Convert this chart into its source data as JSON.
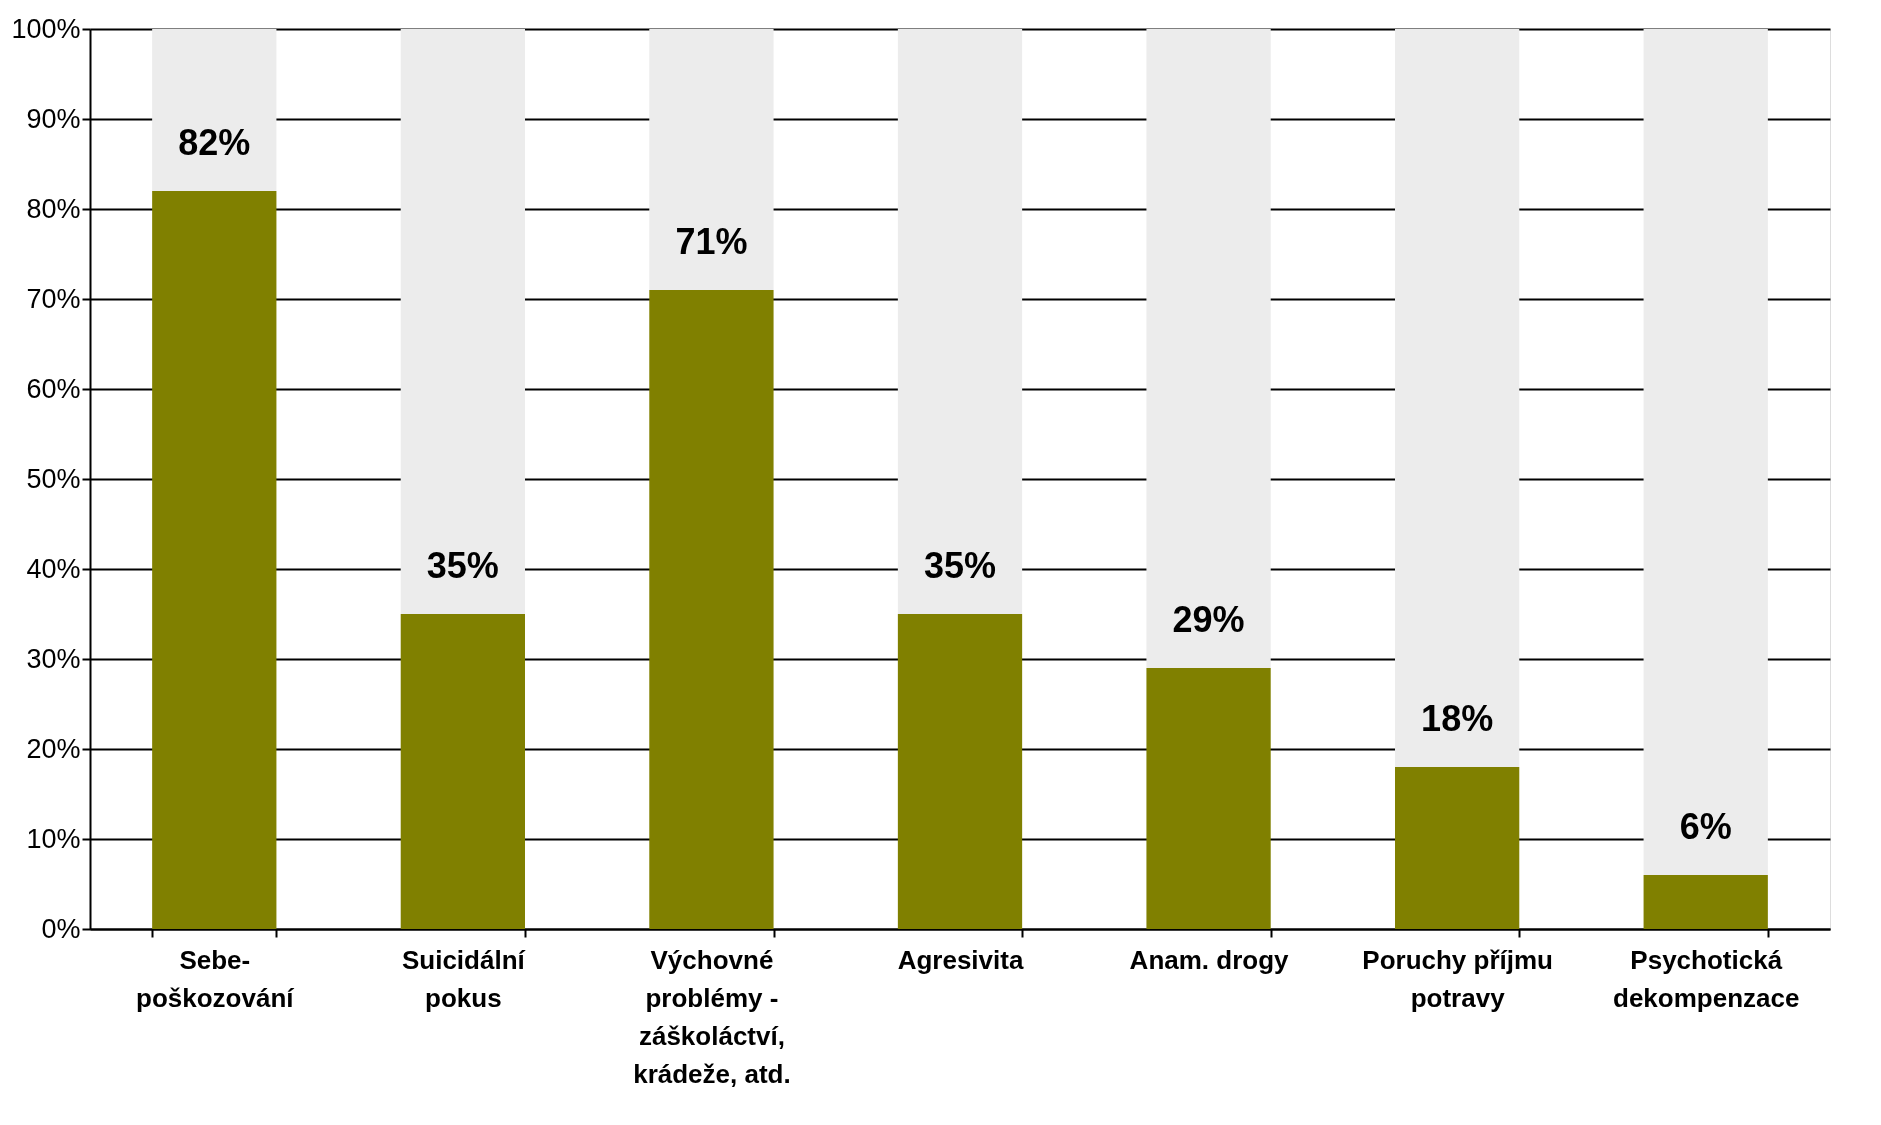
{
  "chart_data": {
    "type": "bar",
    "stacked": true,
    "categories": [
      "Sebe-poškozování",
      "Suicidální pokus",
      "Výchovné problémy - záškoláctví, krádeže, atd.",
      "Agresivita",
      "Anam. drogy",
      "Poruchy příjmu potravy",
      "Psychotická dekompenzace"
    ],
    "series": [
      {
        "color": "#808000",
        "values": [
          82,
          35,
          71,
          35,
          29,
          18,
          6
        ],
        "value_labels": [
          "82%",
          "35%",
          "71%",
          "35%",
          "29%",
          "18%",
          "6%"
        ]
      },
      {
        "color": "#ececec",
        "values": [
          18,
          65,
          29,
          65,
          71,
          82,
          94
        ]
      }
    ],
    "ylim": [
      0,
      100
    ],
    "yticks": [
      {
        "value": 0,
        "label": "0%"
      },
      {
        "value": 10,
        "label": "10%"
      },
      {
        "value": 20,
        "label": "20%"
      },
      {
        "value": 30,
        "label": "30%"
      },
      {
        "value": 40,
        "label": "40%"
      },
      {
        "value": 50,
        "label": "50%"
      },
      {
        "value": 60,
        "label": "60%"
      },
      {
        "value": 70,
        "label": "70%"
      },
      {
        "value": 80,
        "label": "80%"
      },
      {
        "value": 90,
        "label": "90%"
      },
      {
        "value": 100,
        "label": "100%"
      }
    ],
    "grid": "y"
  }
}
